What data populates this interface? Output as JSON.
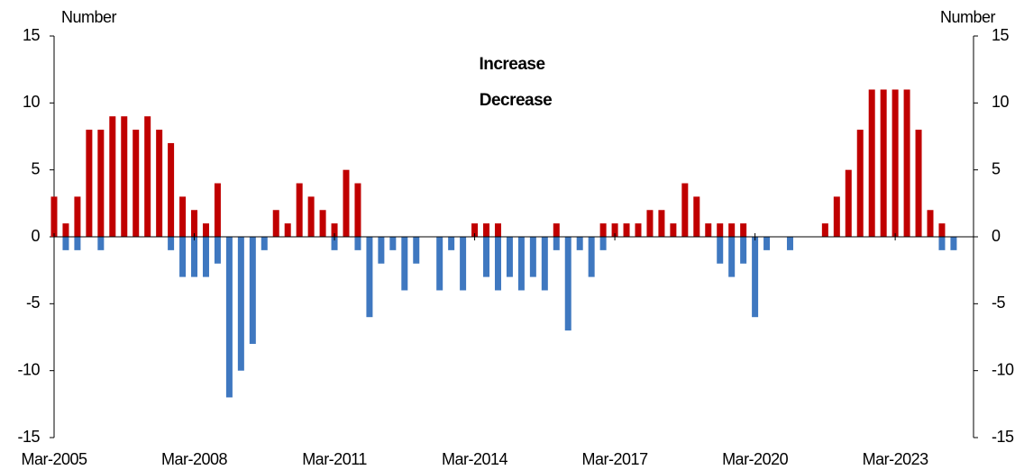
{
  "chart_data": {
    "type": "bar",
    "y_label": "Number",
    "y2_label": "Number",
    "categories": [
      "Mar-2005",
      null,
      null,
      null,
      null,
      null,
      null,
      null,
      null,
      null,
      null,
      null,
      "Mar-2008",
      null,
      null,
      null,
      null,
      null,
      null,
      null,
      null,
      null,
      null,
      null,
      "Mar-2011",
      null,
      null,
      null,
      null,
      null,
      null,
      null,
      null,
      null,
      null,
      null,
      "Mar-2014",
      null,
      null,
      null,
      null,
      null,
      null,
      null,
      null,
      null,
      null,
      null,
      "Mar-2017",
      null,
      null,
      null,
      null,
      null,
      null,
      null,
      null,
      null,
      null,
      null,
      "Mar-2020",
      null,
      null,
      null,
      null,
      null,
      null,
      null,
      null,
      null,
      null,
      null,
      "Mar-2023",
      null,
      null,
      null,
      null,
      null
    ],
    "series": [
      {
        "name": "Increase",
        "color": "#c00000",
        "values": [
          3,
          1,
          3,
          8,
          8,
          9,
          9,
          8,
          9,
          8,
          7,
          3,
          2,
          1,
          4,
          0,
          0,
          0,
          0,
          2,
          1,
          4,
          3,
          2,
          1,
          5,
          4,
          0,
          0,
          0,
          0,
          0,
          0,
          0,
          0,
          0,
          1,
          1,
          1,
          0,
          0,
          0,
          0,
          1,
          0,
          0,
          0,
          1,
          1,
          1,
          1,
          2,
          2,
          1,
          4,
          3,
          1,
          1,
          1,
          1,
          0,
          0,
          0,
          0,
          0,
          0,
          1,
          3,
          5,
          8,
          11,
          11,
          11,
          11,
          8,
          2,
          1,
          0
        ]
      },
      {
        "name": "Decrease",
        "color": "#3f78c0",
        "values": [
          0,
          -1,
          -1,
          0,
          -1,
          0,
          0,
          0,
          0,
          0,
          -1,
          -3,
          -3,
          -3,
          -2,
          -12,
          -10,
          -8,
          -1,
          0,
          0,
          0,
          0,
          0,
          -1,
          0,
          -1,
          -6,
          -2,
          -1,
          -4,
          -2,
          0,
          -4,
          -1,
          -4,
          0,
          -3,
          -4,
          -3,
          -4,
          -3,
          -4,
          -1,
          -7,
          -1,
          -3,
          -1,
          0,
          0,
          0,
          0,
          0,
          0,
          0,
          0,
          0,
          -2,
          -3,
          -2,
          -6,
          -1,
          0,
          -1,
          0,
          0,
          0,
          0,
          0,
          0,
          0,
          0,
          0,
          0,
          0,
          0,
          -1,
          -1
        ]
      }
    ],
    "ylim": [
      -15,
      15
    ],
    "yticks": [
      -15,
      -10,
      -5,
      0,
      5,
      10,
      15
    ],
    "y2lim": [
      -15,
      15
    ],
    "y2ticks": [
      -15,
      -10,
      -5,
      0,
      5,
      10,
      15
    ]
  }
}
